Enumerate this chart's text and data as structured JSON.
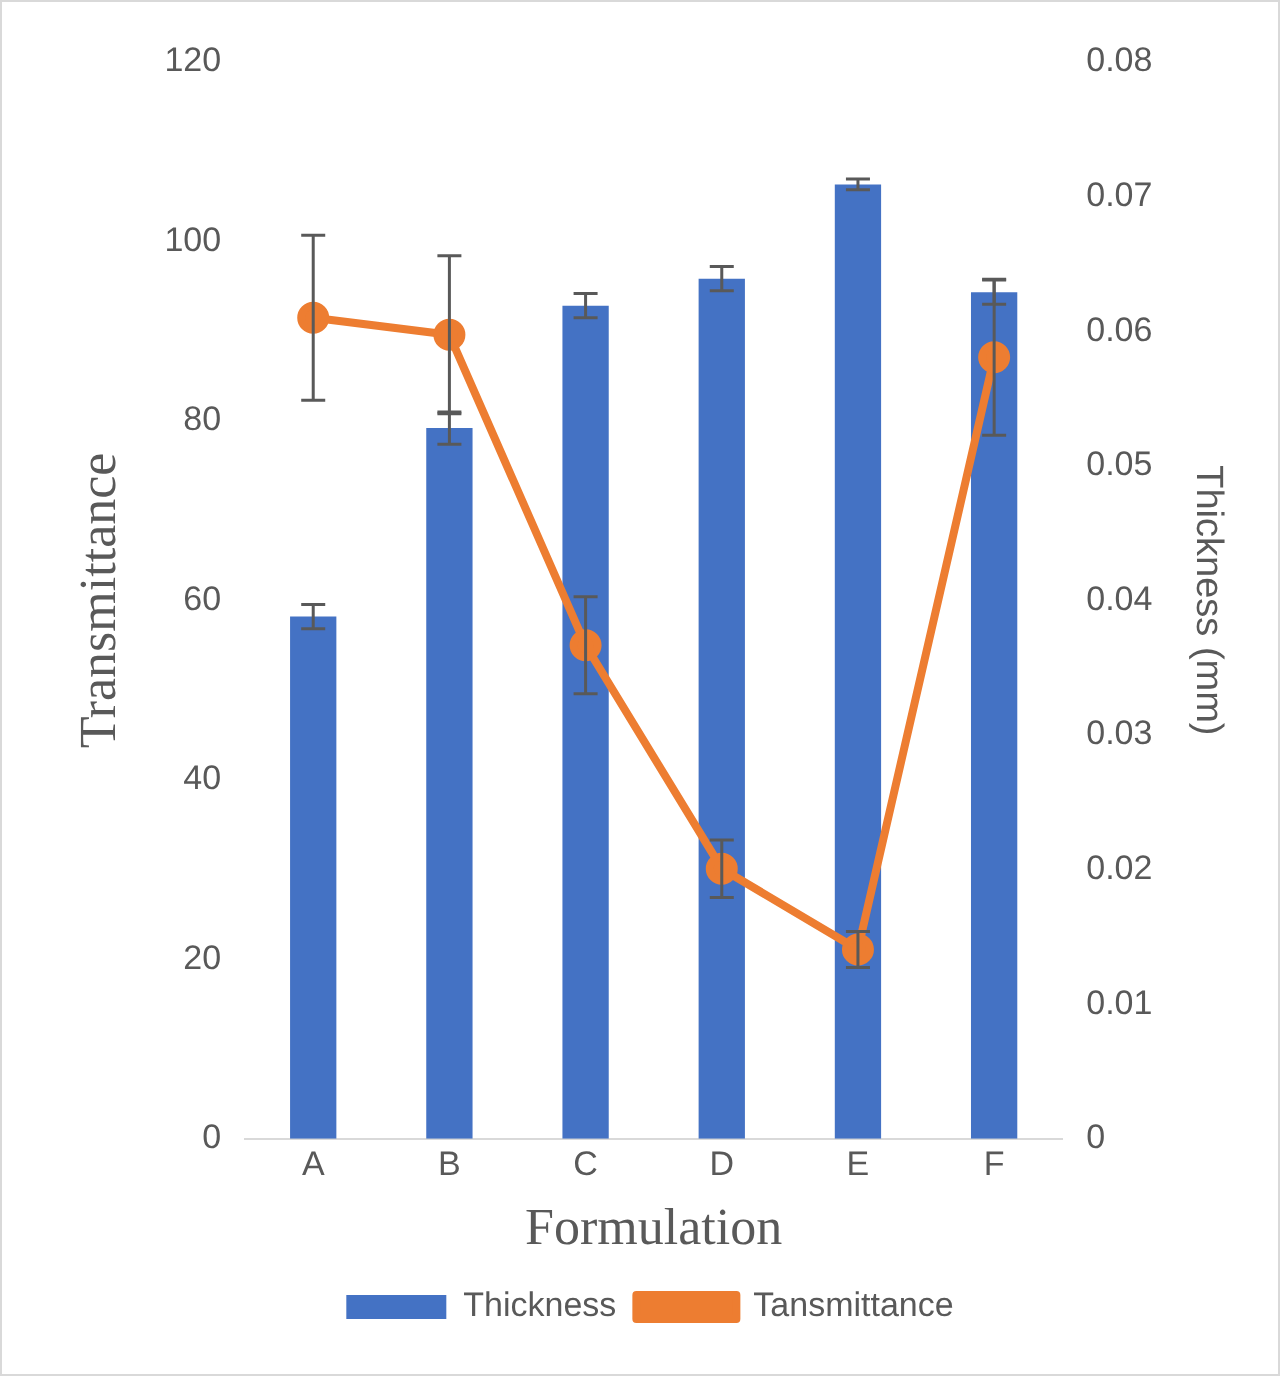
{
  "chart_data": {
    "type": "bar",
    "xlabel": "Formulation",
    "ylabel": "Transmittance",
    "y2label": "Thickness (mm)",
    "categories": [
      "A",
      "B",
      "C",
      "D",
      "E",
      "F"
    ],
    "series": [
      {
        "name": "Thickness",
        "axis": "y2",
        "color": "#4472c4",
        "values": [
          0.0388,
          0.0528,
          0.0619,
          0.0639,
          0.0709,
          0.0629
        ],
        "errors": [
          0.0009,
          0.0012,
          0.0009,
          0.0009,
          0.0004,
          0.0009
        ]
      },
      {
        "name": "Tansmittance",
        "type": "line",
        "axis": "y",
        "color": "#ed7d31",
        "marker": "circle",
        "values": [
          91.5,
          89.6,
          55.0,
          30.1,
          21.1,
          87.1
        ],
        "errors": [
          9.2,
          8.8,
          5.4,
          3.2,
          2.0,
          8.7
        ]
      }
    ],
    "ylim": [
      0,
      120
    ],
    "yticks": [
      0,
      20,
      40,
      60,
      80,
      100,
      120
    ],
    "y2lim": [
      0,
      0.08
    ],
    "y2ticks": [
      0,
      0.01,
      0.02,
      0.03,
      0.04,
      0.05,
      0.06,
      0.07,
      0.08
    ],
    "grid": false,
    "legend": "bottom"
  }
}
